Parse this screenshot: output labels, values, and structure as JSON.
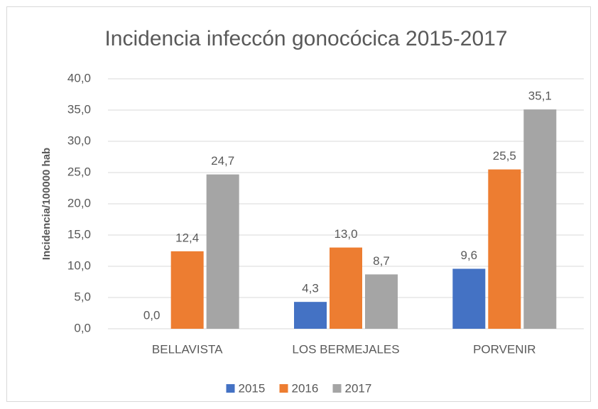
{
  "chart_data": {
    "type": "bar",
    "title": "Incidencia infeccón gonocócica 2015-2017",
    "y_label": "Incidencia/100000 hab",
    "categories": [
      "BELLAVISTA",
      "LOS BERMEJALES",
      "PORVENIR"
    ],
    "series": [
      {
        "name": "2015",
        "color": "#4472c4",
        "values": [
          0,
          4.3,
          9.6
        ],
        "value_labels": [
          "0,0",
          "4,3",
          "9,6"
        ]
      },
      {
        "name": "2016",
        "color": "#ed7d31",
        "values": [
          12.4,
          13,
          25.5
        ],
        "value_labels": [
          "12,4",
          "13,0",
          "25,5"
        ]
      },
      {
        "name": "2017",
        "color": "#a5a5a5",
        "values": [
          24.7,
          8.7,
          35.1
        ],
        "value_labels": [
          "24,7",
          "8,7",
          "35,1"
        ]
      }
    ],
    "ylim": [
      0,
      40
    ],
    "yticks": [
      {
        "value": 0,
        "label": "0,0"
      },
      {
        "value": 5,
        "label": "5,0"
      },
      {
        "value": 10,
        "label": "10,0"
      },
      {
        "value": 15,
        "label": "15,0"
      },
      {
        "value": 20,
        "label": "20,0"
      },
      {
        "value": 25,
        "label": "25,0"
      },
      {
        "value": 30,
        "label": "30,0"
      },
      {
        "value": 35,
        "label": "35,0"
      },
      {
        "value": 40,
        "label": "40,0"
      }
    ],
    "grid": true,
    "legend": "bottom"
  }
}
